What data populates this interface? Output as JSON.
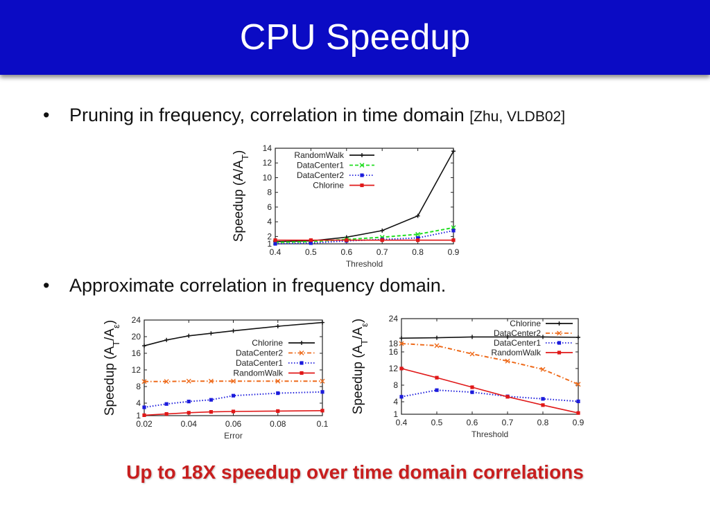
{
  "slide": {
    "title": "CPU Speedup",
    "bullet1_text": "Pruning in frequency, correlation in time domain ",
    "bullet1_cite": "[Zhu, VLDB02]",
    "bullet2_text": "Approximate correlation in frequency domain.",
    "bullet_symbol": "•",
    "conclusion": "Up to 18X speedup over time domain correlations"
  },
  "chart_data": [
    {
      "type": "line",
      "xlabel": "Threshold",
      "ylabel": "Speedup (A/A_T)",
      "x": [
        0.4,
        0.5,
        0.6,
        0.7,
        0.8,
        0.9
      ],
      "xlim": [
        0.4,
        0.9
      ],
      "ylim": [
        1,
        14
      ],
      "xticks": [
        "0.4",
        "0.5",
        "0.6",
        "0.7",
        "0.8",
        "0.9"
      ],
      "yticks": [
        1,
        2,
        4,
        6,
        8,
        10,
        12,
        14
      ],
      "legend_position": "top-left",
      "series": [
        {
          "name": "RandomWalk",
          "color": "#111111",
          "dash": "solid",
          "marker": "plus",
          "values": [
            1.3,
            1.4,
            1.9,
            2.8,
            4.8,
            13.6
          ]
        },
        {
          "name": "DataCenter1",
          "color": "#22dd22",
          "dash": "dashed",
          "marker": "x",
          "values": [
            1.2,
            1.3,
            1.6,
            1.9,
            2.3,
            3.2
          ]
        },
        {
          "name": "DataCenter2",
          "color": "#1c1cdc",
          "dash": "dotted",
          "marker": "square",
          "values": [
            1.0,
            1.1,
            1.4,
            1.6,
            1.8,
            2.8
          ]
        },
        {
          "name": "Chlorine",
          "color": "#e01818",
          "dash": "solid",
          "marker": "square",
          "values": [
            1.5,
            1.5,
            1.5,
            1.5,
            1.5,
            1.5
          ]
        }
      ]
    },
    {
      "type": "line",
      "xlabel": "Error",
      "ylabel": "Speedup (A_T/A_ε)",
      "x": [
        0.02,
        0.03,
        0.04,
        0.05,
        0.06,
        0.08,
        0.1
      ],
      "xlim": [
        0.02,
        0.1
      ],
      "ylim": [
        1,
        24
      ],
      "xticks": [
        "0.02",
        "0.04",
        "0.06",
        "0.08",
        "0.1"
      ],
      "yticks": [
        1,
        4,
        8,
        12,
        16,
        20,
        24
      ],
      "legend_position": "right",
      "series": [
        {
          "name": "Chlorine",
          "color": "#111111",
          "dash": "solid",
          "marker": "plus",
          "values": [
            17.8,
            19.2,
            20.2,
            20.8,
            21.4,
            22.5,
            23.4
          ]
        },
        {
          "name": "DataCenter2",
          "color": "#ee6a1a",
          "dash": "dashdot",
          "marker": "x",
          "values": [
            9.2,
            9.2,
            9.3,
            9.3,
            9.3,
            9.3,
            9.3
          ]
        },
        {
          "name": "DataCenter1",
          "color": "#1c1cdc",
          "dash": "dotted",
          "marker": "square",
          "values": [
            3.0,
            3.8,
            4.4,
            4.8,
            5.8,
            6.4,
            6.7
          ]
        },
        {
          "name": "RandomWalk",
          "color": "#e01818",
          "dash": "solid",
          "marker": "square",
          "values": [
            1.1,
            1.4,
            1.7,
            1.9,
            2.0,
            2.1,
            2.2
          ]
        }
      ]
    },
    {
      "type": "line",
      "xlabel": "Threshold",
      "ylabel": "Speedup (A_T/A_ε)",
      "x": [
        0.4,
        0.5,
        0.6,
        0.7,
        0.8,
        0.9
      ],
      "xlim": [
        0.4,
        0.9
      ],
      "ylim": [
        1,
        24
      ],
      "xticks": [
        "0.4",
        "0.5",
        "0.6",
        "0.7",
        "0.8",
        "0.9"
      ],
      "yticks": [
        1,
        4,
        8,
        12,
        16,
        18,
        24
      ],
      "legend_position": "top-right",
      "series": [
        {
          "name": "Chlorine",
          "color": "#111111",
          "dash": "solid",
          "marker": "plus",
          "values": [
            19.3,
            19.4,
            19.6,
            19.6,
            19.6,
            19.5
          ]
        },
        {
          "name": "DataCenter2",
          "color": "#ee6a1a",
          "dash": "dashdot",
          "marker": "x",
          "values": [
            18.0,
            17.5,
            15.5,
            13.8,
            11.8,
            8.2
          ]
        },
        {
          "name": "DataCenter1",
          "color": "#1c1cdc",
          "dash": "dotted",
          "marker": "square",
          "values": [
            5.2,
            6.8,
            6.3,
            5.3,
            4.7,
            4.1
          ]
        },
        {
          "name": "RandomWalk",
          "color": "#e01818",
          "dash": "solid",
          "marker": "square",
          "values": [
            12.0,
            9.8,
            7.5,
            5.2,
            3.2,
            1.3
          ]
        }
      ]
    }
  ]
}
